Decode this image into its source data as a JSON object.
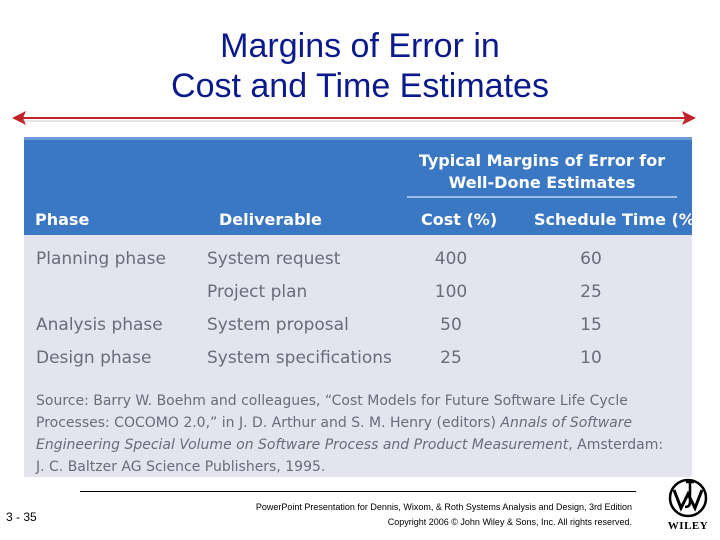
{
  "title": {
    "line1": "Margins of Error in",
    "line2": "Cost and Time Estimates"
  },
  "table": {
    "group_header_line1": "Typical Margins of Error for",
    "group_header_line2": "Well-Done Estimates",
    "columns": [
      "Phase",
      "Deliverable",
      "Cost (%)",
      "Schedule Time (%)"
    ],
    "rows": [
      {
        "phase": "Planning phase",
        "deliverable": "System request",
        "cost": "400",
        "schedule": "60"
      },
      {
        "phase": "",
        "deliverable": "Project plan",
        "cost": "100",
        "schedule": "25"
      },
      {
        "phase": "Analysis phase",
        "deliverable": "System proposal",
        "cost": "50",
        "schedule": "15"
      },
      {
        "phase": "Design phase",
        "deliverable": "System specifications",
        "cost": "25",
        "schedule": "10"
      }
    ],
    "source_prefix": "Source: Barry W. Boehm and colleagues, “Cost Models for Future Software Life Cycle Processes: COCOMO 2.0,” in J. D. Arthur and S. M. Henry (editors) ",
    "source_italic": "Annals of Software Engineering Special Volume on Software Process and Product Measurement",
    "source_suffix": ", Amsterdam: J. C. Baltzer AG Science Publishers, 1995."
  },
  "footer": {
    "slide_number": "3 - 35",
    "line1": "PowerPoint Presentation for Dennis, Wixom, & Roth Systems Analysis and Design, 3rd Edition",
    "line2": "Copyright 2006 © John Wiley & Sons, Inc.  All rights reserved.",
    "logo_text": "WILEY"
  },
  "colors": {
    "title": "#0a1a8c",
    "header_band": "#3b78c4",
    "table_body": "#e3e4ee",
    "arrow": "#c0232a"
  }
}
